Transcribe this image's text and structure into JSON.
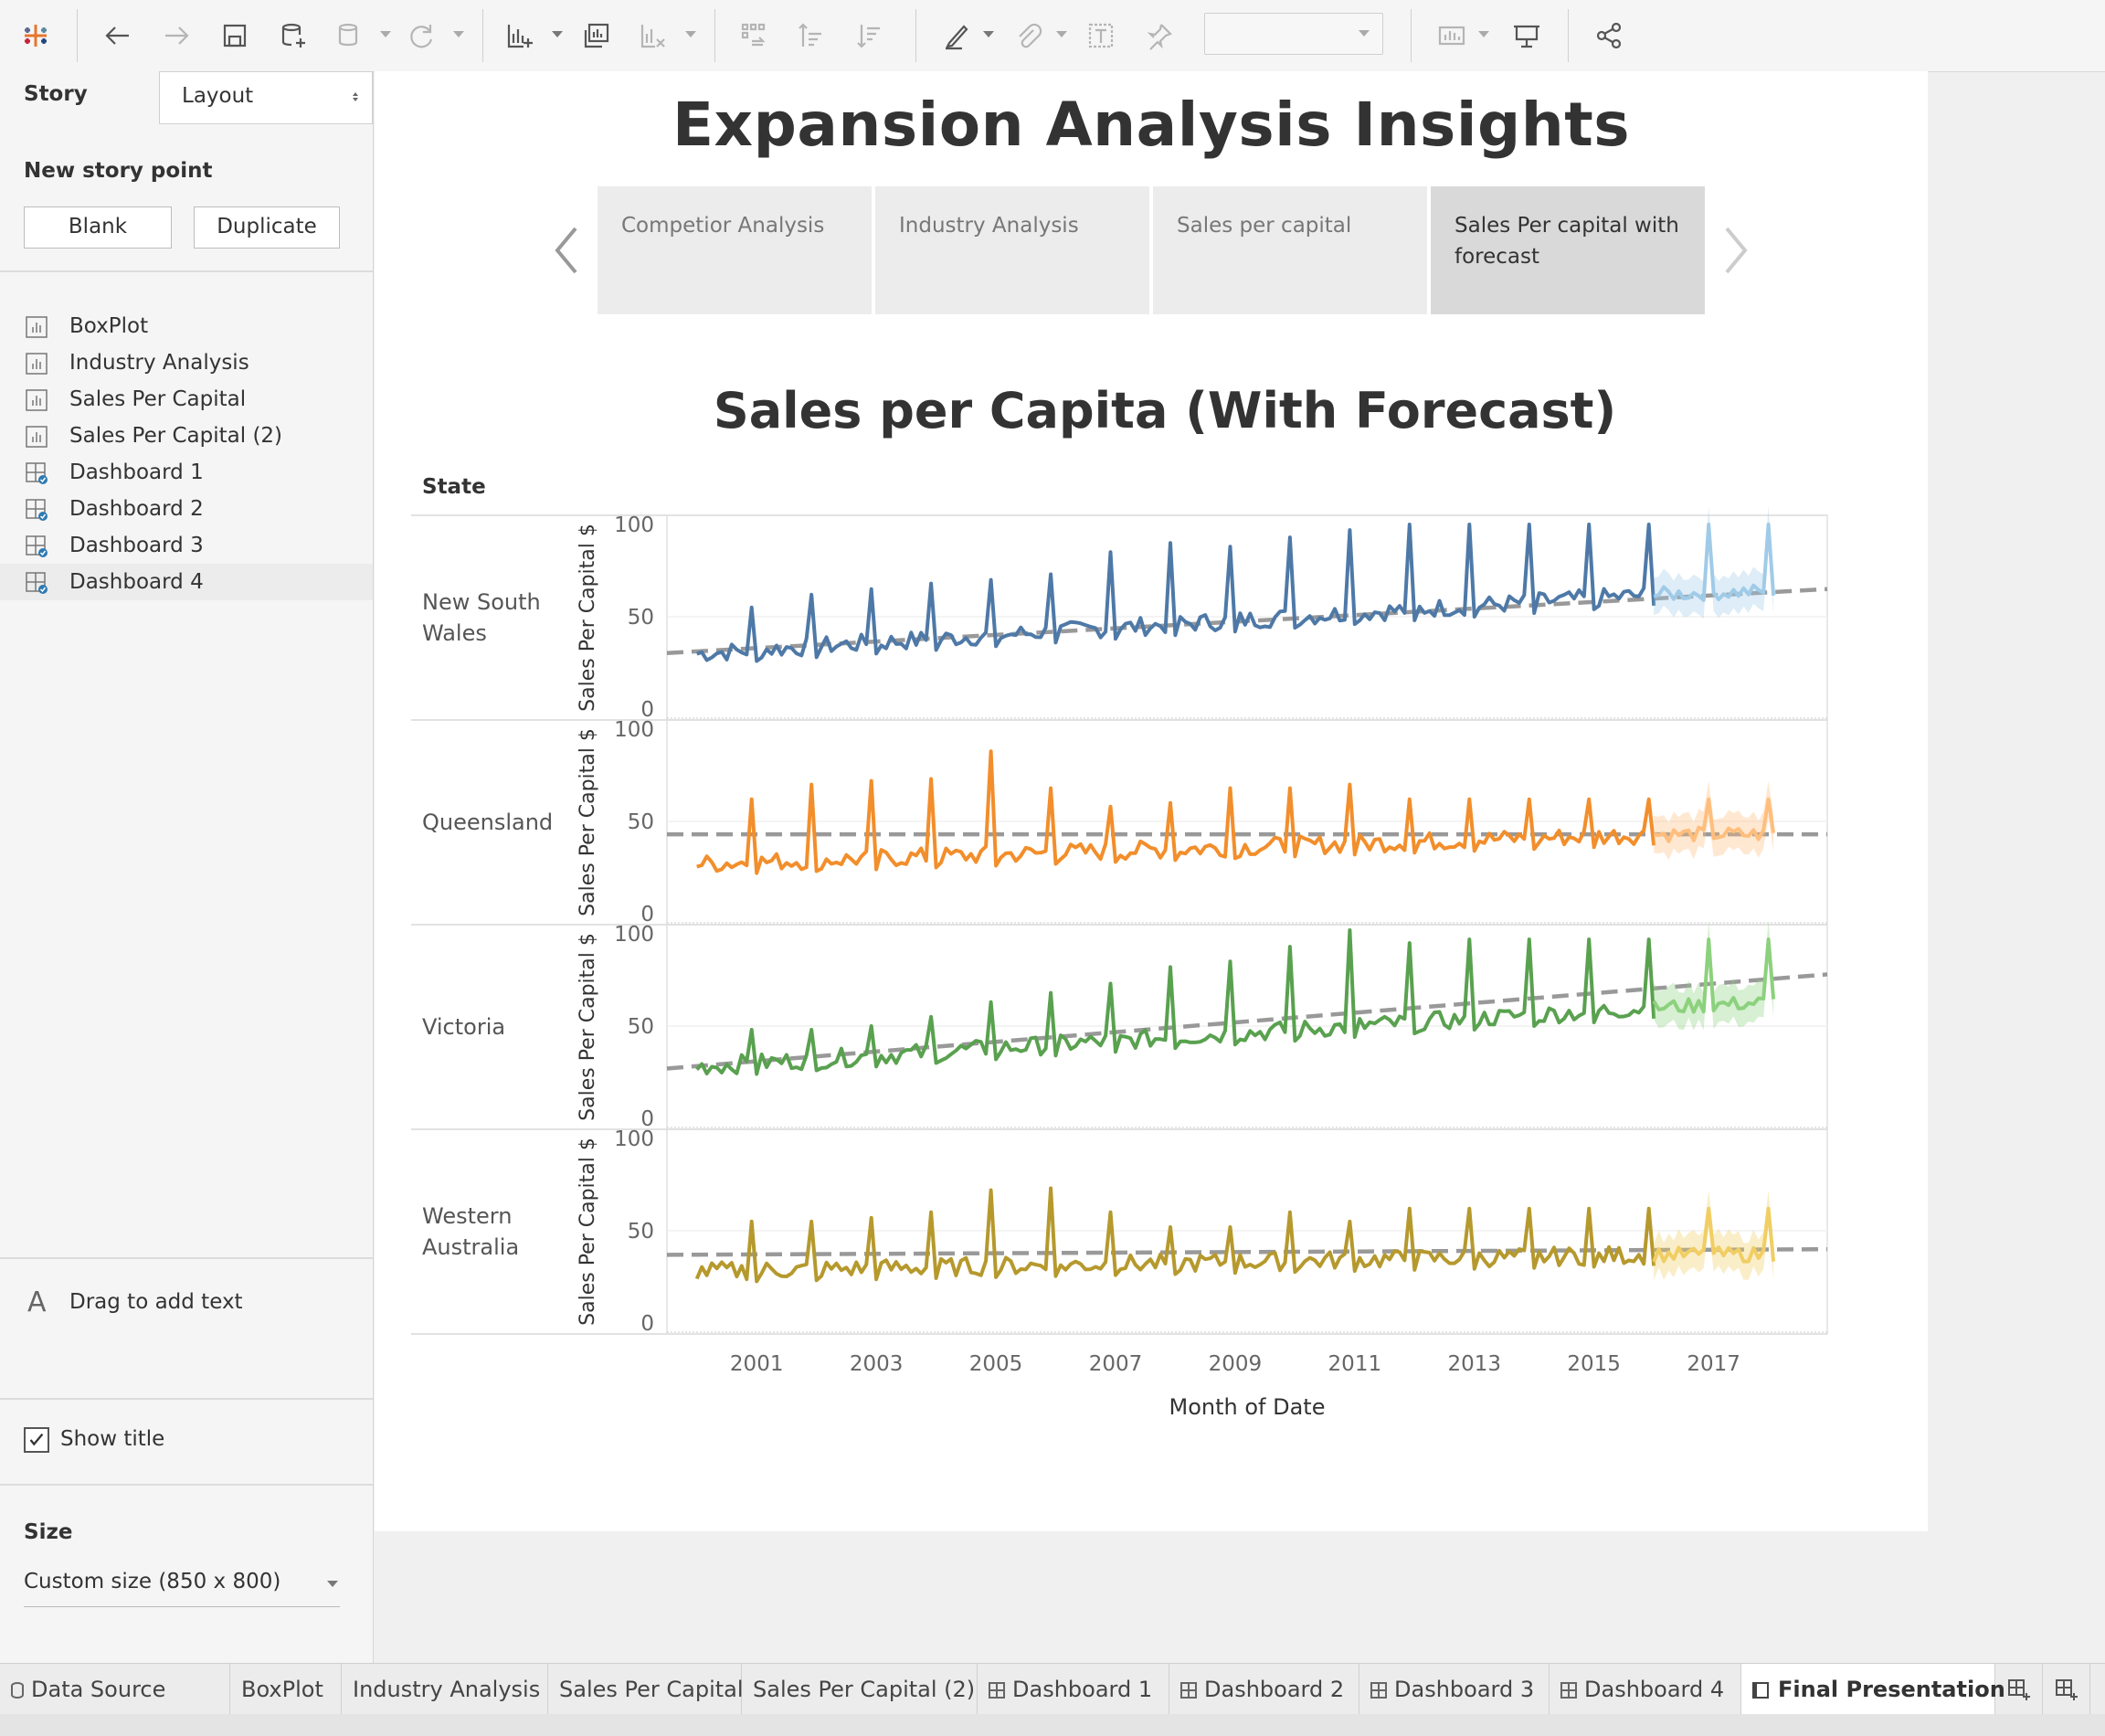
{
  "toolbar": {
    "icons": [
      "tableau-logo-icon",
      "undo-icon",
      "redo-icon",
      "save-icon",
      "new-data-source-icon",
      "pause-updates-icon",
      "refresh-icon",
      "new-worksheet-icon",
      "duplicate-sheet-icon",
      "clear-sheet-icon",
      "swap-icon",
      "sort-ascending-icon",
      "sort-descending-icon",
      "highlight-icon",
      "attach-icon",
      "text-icon",
      "pin-icon",
      "show-me-icon",
      "presentation-icon",
      "share-icon"
    ],
    "fit_combo_value": ""
  },
  "side": {
    "story_tab": "Story",
    "layout_tab": "Layout",
    "new_story_point": "New story point",
    "blank_button": "Blank",
    "duplicate_button": "Duplicate",
    "sheets": [
      {
        "label": "BoxPlot",
        "type": "worksheet"
      },
      {
        "label": "Industry Analysis",
        "type": "worksheet"
      },
      {
        "label": "Sales Per Capital",
        "type": "worksheet"
      },
      {
        "label": "Sales Per Capital (2)",
        "type": "worksheet"
      },
      {
        "label": "Dashboard 1",
        "type": "dashboard"
      },
      {
        "label": "Dashboard 2",
        "type": "dashboard"
      },
      {
        "label": "Dashboard 3",
        "type": "dashboard"
      },
      {
        "label": "Dashboard 4",
        "type": "dashboard"
      }
    ],
    "drag_text": "Drag to add text",
    "show_title": "Show title",
    "show_title_checked": true,
    "size_heading": "Size",
    "size_value": "Custom size (850 x 800)"
  },
  "story": {
    "title": "Expansion Analysis Insights",
    "points": [
      {
        "label": "Competior Analysis",
        "active": false
      },
      {
        "label": "Industry Analysis",
        "active": false
      },
      {
        "label": "Sales per capital",
        "active": false
      },
      {
        "label": "Sales Per capital with forecast",
        "active": true
      }
    ]
  },
  "chart_data": {
    "type": "line",
    "title": "Sales per Capita (With Forecast)",
    "row_header": "State",
    "ylabel": "Sales Per Capital $",
    "xlabel": "Month of Date",
    "ylim": [
      0,
      100
    ],
    "yticks": [
      0,
      50,
      100
    ],
    "xticks": [
      "2001",
      "2003",
      "2005",
      "2007",
      "2009",
      "2011",
      "2013",
      "2015",
      "2017"
    ],
    "x_range": [
      1999.5,
      2018.9
    ],
    "actual_end": 2016.0,
    "forecast_end": 2018.0,
    "series": [
      {
        "name": "New South Wales",
        "color": "#4e79a7",
        "forecast_color": "#a0cbe8",
        "base_start": 30,
        "base_end": 62,
        "peaks": [
          55,
          62,
          65,
          68,
          70,
          73,
          85,
          90,
          88,
          93,
          97,
          100
        ],
        "trend": [
          31,
          65
        ]
      },
      {
        "name": "Queensland",
        "color": "#f28e2b",
        "forecast_color": "#ffbe7d",
        "base_start": 27,
        "base_end": 43,
        "peaks": [
          62,
          70,
          72,
          73,
          88,
          68,
          58,
          60,
          68,
          68,
          70,
          62,
          62
        ],
        "trend": [
          43,
          43
        ]
      },
      {
        "name": "Victoria",
        "color": "#59a14f",
        "forecast_color": "#8cd17d",
        "base_start": 28,
        "base_end": 60,
        "peaks": [
          48,
          48,
          50,
          55,
          63,
          68,
          73,
          82,
          85,
          93,
          102,
          95,
          97
        ],
        "trend": [
          28,
          78
        ]
      },
      {
        "name": "Western Australia",
        "color": "#b6992d",
        "forecast_color": "#f1ce63",
        "base_start": 28,
        "base_end": 37,
        "peaks": [
          55,
          55,
          57,
          60,
          72,
          73,
          60,
          52,
          52,
          60,
          55,
          62,
          62
        ],
        "trend": [
          37,
          40
        ]
      }
    ]
  },
  "bottom_tabs": [
    {
      "label": "Data Source",
      "icon": "database-icon"
    },
    {
      "label": "BoxPlot",
      "icon": ""
    },
    {
      "label": "Industry Analysis",
      "icon": ""
    },
    {
      "label": "Sales Per Capital",
      "icon": ""
    },
    {
      "label": "Sales Per Capital (2)",
      "icon": ""
    },
    {
      "label": "Dashboard 1",
      "icon": "dashboard-icon"
    },
    {
      "label": "Dashboard 2",
      "icon": "dashboard-icon"
    },
    {
      "label": "Dashboard 3",
      "icon": "dashboard-icon"
    },
    {
      "label": "Dashboard 4",
      "icon": "dashboard-icon"
    },
    {
      "label": "Final Presentation",
      "icon": "story-icon",
      "active": true
    }
  ]
}
